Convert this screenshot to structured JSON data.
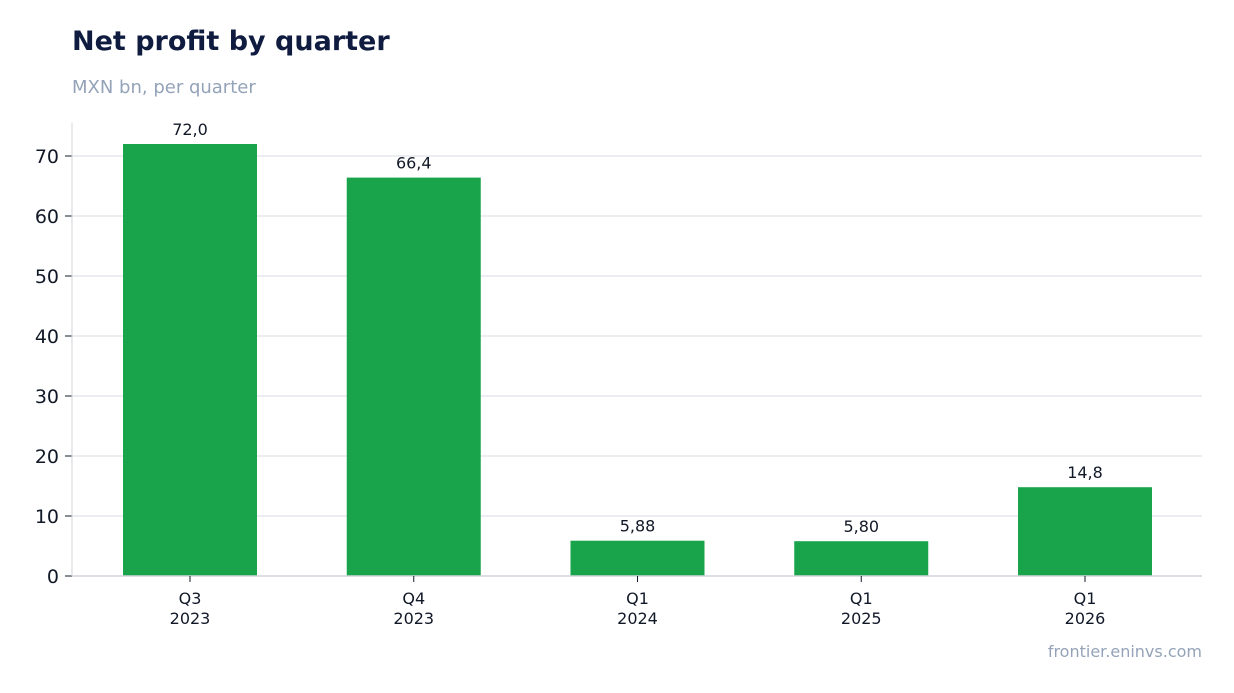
{
  "header": {
    "title": "Net profit by quarter",
    "subtitle": "MXN bn, per quarter"
  },
  "footer": {
    "source": "frontier.eninvs.com"
  },
  "colors": {
    "bar": "#19a34a",
    "grid": "#e5e7eb",
    "axis": "#d1d5db",
    "label": "#111827"
  },
  "chart_data": {
    "type": "bar",
    "title": "Net profit by quarter",
    "subtitle": "MXN bn, per quarter",
    "categories": [
      [
        "Q3",
        "2023"
      ],
      [
        "Q4",
        "2023"
      ],
      [
        "Q1",
        "2024"
      ],
      [
        "Q1",
        "2025"
      ],
      [
        "Q1",
        "2026"
      ]
    ],
    "values": [
      72.0,
      66.4,
      5.88,
      5.8,
      14.8
    ],
    "value_labels": [
      "72,0",
      "66,4",
      "5,88",
      "5,80",
      "14,8"
    ],
    "yticks": [
      0,
      10,
      20,
      30,
      40,
      50,
      60,
      70
    ],
    "ylim": [
      0,
      75.5
    ],
    "grid": "horizontal",
    "legend": "none"
  }
}
